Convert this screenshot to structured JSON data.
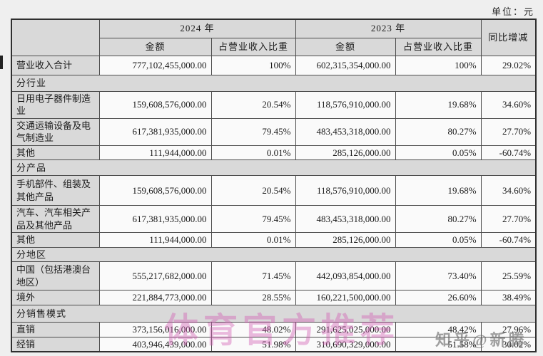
{
  "page": {
    "unit_label": "单位：元"
  },
  "table": {
    "header": {
      "col_2024": "2024 年",
      "col_2023": "2023 年",
      "amount": "金额",
      "revenue_share": "占营业收入比重",
      "yoy_change": "同比增减"
    },
    "rows": [
      {
        "type": "data",
        "label": "营业收入合计",
        "amount_2024": "777,102,455,000.00",
        "ratio_2024": "100%",
        "amount_2023": "602,315,354,000.00",
        "ratio_2023": "100%",
        "yoy": "29.02%"
      },
      {
        "type": "section",
        "label": "分行业"
      },
      {
        "type": "data",
        "label": "日用电子器件制造业",
        "amount_2024": "159,608,576,000.00",
        "ratio_2024": "20.54%",
        "amount_2023": "118,576,910,000.00",
        "ratio_2023": "19.68%",
        "yoy": "34.60%"
      },
      {
        "type": "data",
        "label": "交通运输设备及电气制造业",
        "amount_2024": "617,381,935,000.00",
        "ratio_2024": "79.45%",
        "amount_2023": "483,453,318,000.00",
        "ratio_2023": "80.27%",
        "yoy": "27.70%"
      },
      {
        "type": "data",
        "label": "其他",
        "amount_2024": "111,944,000.00",
        "ratio_2024": "0.01%",
        "amount_2023": "285,126,000.00",
        "ratio_2023": "0.05%",
        "yoy": "-60.74%"
      },
      {
        "type": "section",
        "label": "分产品"
      },
      {
        "type": "data",
        "label": "手机部件、组装及其他产品",
        "amount_2024": "159,608,576,000.00",
        "ratio_2024": "20.54%",
        "amount_2023": "118,576,910,000.00",
        "ratio_2023": "19.68%",
        "yoy": "34.60%"
      },
      {
        "type": "data",
        "label": "汽车、汽车相关产品及其他产品",
        "amount_2024": "617,381,935,000.00",
        "ratio_2024": "79.45%",
        "amount_2023": "483,453,318,000.00",
        "ratio_2023": "80.27%",
        "yoy": "27.70%"
      },
      {
        "type": "data",
        "label": "其他",
        "amount_2024": "111,944,000.00",
        "ratio_2024": "0.01%",
        "amount_2023": "285,126,000.00",
        "ratio_2023": "0.05%",
        "yoy": "-60.74%"
      },
      {
        "type": "section",
        "label": "分地区"
      },
      {
        "type": "data",
        "label": "中国（包括港澳台地区）",
        "amount_2024": "555,217,682,000.00",
        "ratio_2024": "71.45%",
        "amount_2023": "442,093,854,000.00",
        "ratio_2023": "73.40%",
        "yoy": "25.59%"
      },
      {
        "type": "data",
        "label": "境外",
        "amount_2024": "221,884,773,000.00",
        "ratio_2024": "28.55%",
        "amount_2023": "160,221,500,000.00",
        "ratio_2023": "26.60%",
        "yoy": "38.49%"
      },
      {
        "type": "section",
        "label": "分销售模式"
      },
      {
        "type": "data",
        "label": "直销",
        "amount_2024": "373,156,016,000.00",
        "ratio_2024": "48.02%",
        "amount_2023": "291,625,025,000.00",
        "ratio_2023": "48.42%",
        "yoy": "27.96%"
      },
      {
        "type": "data",
        "label": "经销",
        "amount_2024": "403,946,439,000.00",
        "ratio_2024": "51.98%",
        "amount_2023": "310,690,329,000.00",
        "ratio_2023": "51.58%",
        "yoy": "30.02%"
      }
    ]
  },
  "watermarks": {
    "center_pink": "体育官方推荐",
    "zhihu": "知乎@新腾"
  },
  "colors": {
    "cell_gray": "#d9d9d9",
    "cell_white": "#fafafa",
    "border": "#4d4d4d",
    "watermark_pink": "#d25fb5"
  }
}
